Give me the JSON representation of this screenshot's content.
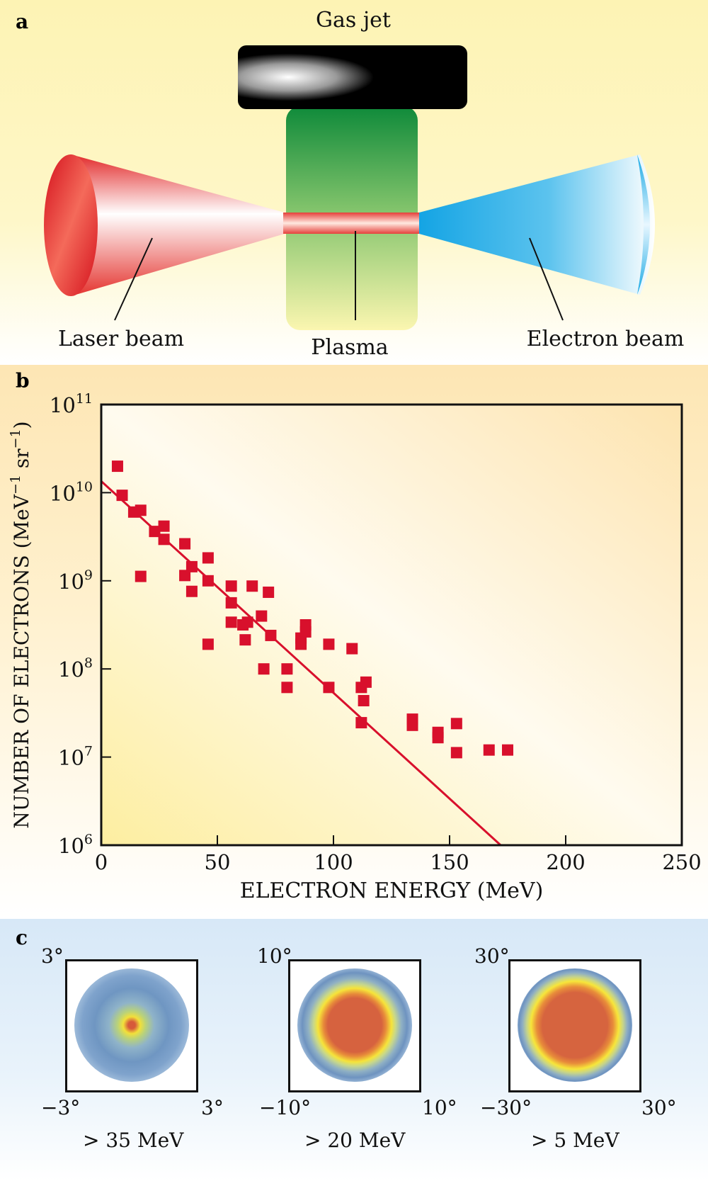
{
  "panel_a": {
    "letter": "a",
    "gas_jet_label": "Gas jet",
    "laser_beam_label": "Laser beam",
    "plasma_label": "Plasma",
    "electron_beam_label": "Electron beam",
    "colors": {
      "laser": "#e0202a",
      "plasma": "#2a9a3a",
      "electron": "#1aa6e0"
    }
  },
  "panel_b": {
    "letter": "b",
    "chart_data": {
      "type": "scatter",
      "title": "",
      "xlabel": "ELECTRON ENERGY (MeV)",
      "ylabel_main": "NUMBER OF ELECTRONS (MeV",
      "ylabel_exp1": "−1",
      "ylabel_mid": " sr",
      "ylabel_exp2": "−1",
      "ylabel_close": ")",
      "xlim": [
        0,
        250
      ],
      "ylim_log10": [
        6,
        11
      ],
      "x_ticks": [
        0,
        50,
        100,
        150,
        200,
        250
      ],
      "y_ticks": [
        {
          "base": "10",
          "exp": "6",
          "log": 6
        },
        {
          "base": "10",
          "exp": "7",
          "log": 7
        },
        {
          "base": "10",
          "exp": "8",
          "log": 8
        },
        {
          "base": "10",
          "exp": "9",
          "log": 9
        },
        {
          "base": "10",
          "exp": "10",
          "log": 10
        },
        {
          "base": "10",
          "exp": "11",
          "log": 11
        }
      ],
      "marker_color": "#d8102c",
      "fit_line": {
        "x": [
          0,
          172
        ],
        "log10_y": [
          10.13,
          6.0
        ]
      },
      "points": [
        [
          7,
          10.3
        ],
        [
          9,
          9.97
        ],
        [
          14,
          9.78
        ],
        [
          17,
          9.8
        ],
        [
          17,
          9.05
        ],
        [
          23,
          9.56
        ],
        [
          27,
          9.47
        ],
        [
          27,
          9.62
        ],
        [
          36,
          9.42
        ],
        [
          36,
          9.06
        ],
        [
          39,
          9.16
        ],
        [
          39,
          8.88
        ],
        [
          46,
          9.26
        ],
        [
          46,
          9.0
        ],
        [
          46,
          8.28
        ],
        [
          56,
          8.94
        ],
        [
          56,
          8.75
        ],
        [
          56,
          8.53
        ],
        [
          61,
          8.5
        ],
        [
          62,
          8.33
        ],
        [
          63,
          8.53
        ],
        [
          65,
          8.94
        ],
        [
          69,
          8.6
        ],
        [
          70,
          8.0
        ],
        [
          72,
          8.87
        ],
        [
          73,
          8.38
        ],
        [
          80,
          8.0
        ],
        [
          80,
          7.79
        ],
        [
          86,
          8.28
        ],
        [
          86,
          8.35
        ],
        [
          88,
          8.5
        ],
        [
          88,
          8.42
        ],
        [
          98,
          8.28
        ],
        [
          98,
          7.79
        ],
        [
          108,
          8.23
        ],
        [
          112,
          7.79
        ],
        [
          112,
          7.39
        ],
        [
          113,
          7.64
        ],
        [
          114,
          7.85
        ],
        [
          134,
          7.43
        ],
        [
          134,
          7.36
        ],
        [
          145,
          7.28
        ],
        [
          145,
          7.22
        ],
        [
          153,
          7.38
        ],
        [
          153,
          7.05
        ],
        [
          167,
          7.08
        ],
        [
          175,
          7.08
        ]
      ]
    }
  },
  "panel_c": {
    "letter": "c",
    "plots": [
      {
        "top_label": "3°",
        "left_label": "−3°",
        "right_label": "3°",
        "caption_symbol": ">",
        "caption": " 35 MeV"
      },
      {
        "top_label": "10°",
        "left_label": "−10°",
        "right_label": "10°",
        "caption_symbol": ">",
        "caption": " 20 MeV"
      },
      {
        "top_label": "30°",
        "left_label": "−30°",
        "right_label": "30°",
        "caption_symbol": ">",
        "caption": " 5 MeV"
      }
    ]
  }
}
